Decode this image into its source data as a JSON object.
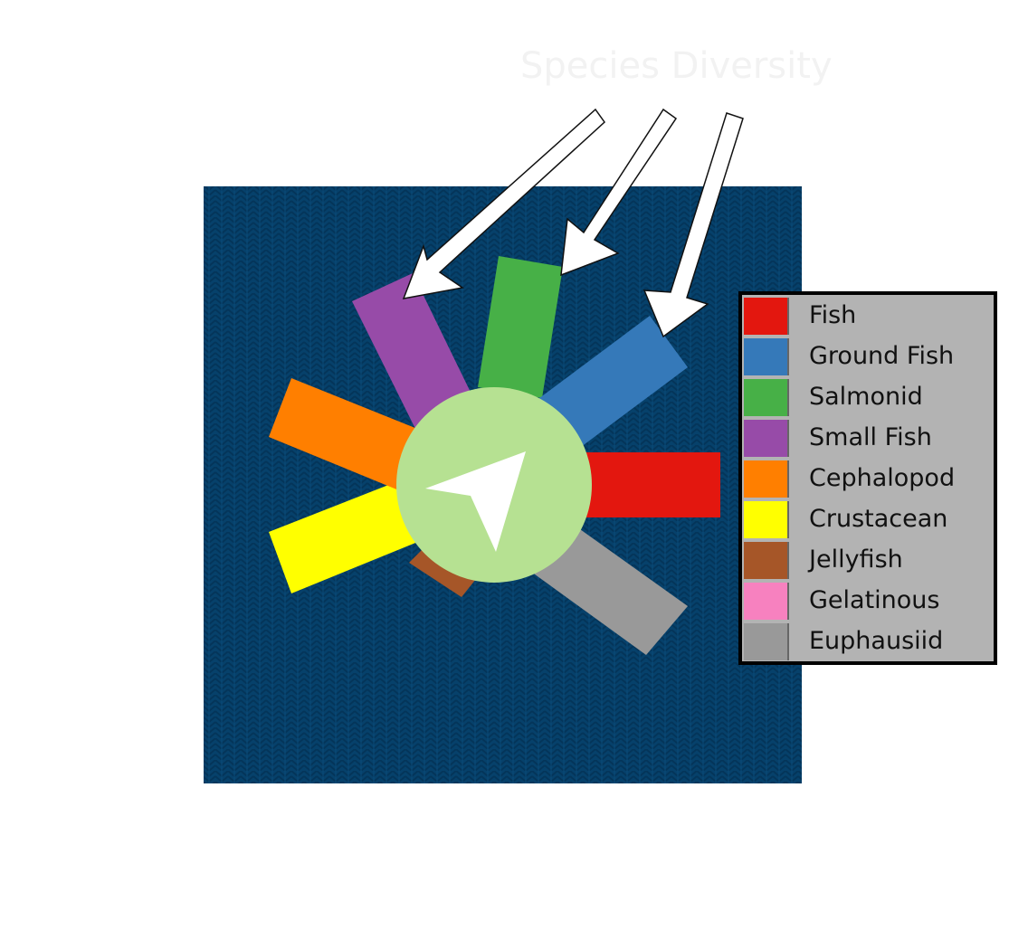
{
  "caption": "Species Diversity",
  "colors": {
    "ocean": "#06416b",
    "center_disc": "#b6e192",
    "center_arrow": "#ffffff"
  },
  "center_icon": "navigation-arrow-icon",
  "legend": [
    {
      "label": "Fish",
      "color": "#e3170f"
    },
    {
      "label": "Ground Fish",
      "color": "#3579b9"
    },
    {
      "label": "Salmonid",
      "color": "#47b047"
    },
    {
      "label": "Small Fish",
      "color": "#974ba8"
    },
    {
      "label": "Cephalopod",
      "color": "#ff7f00"
    },
    {
      "label": "Crustacean",
      "color": "#ffff00"
    },
    {
      "label": "Jellyfish",
      "color": "#a65628"
    },
    {
      "label": "Gelatinous",
      "color": "#f781bf"
    },
    {
      "label": "Euphausiid",
      "color": "#999999"
    }
  ]
}
